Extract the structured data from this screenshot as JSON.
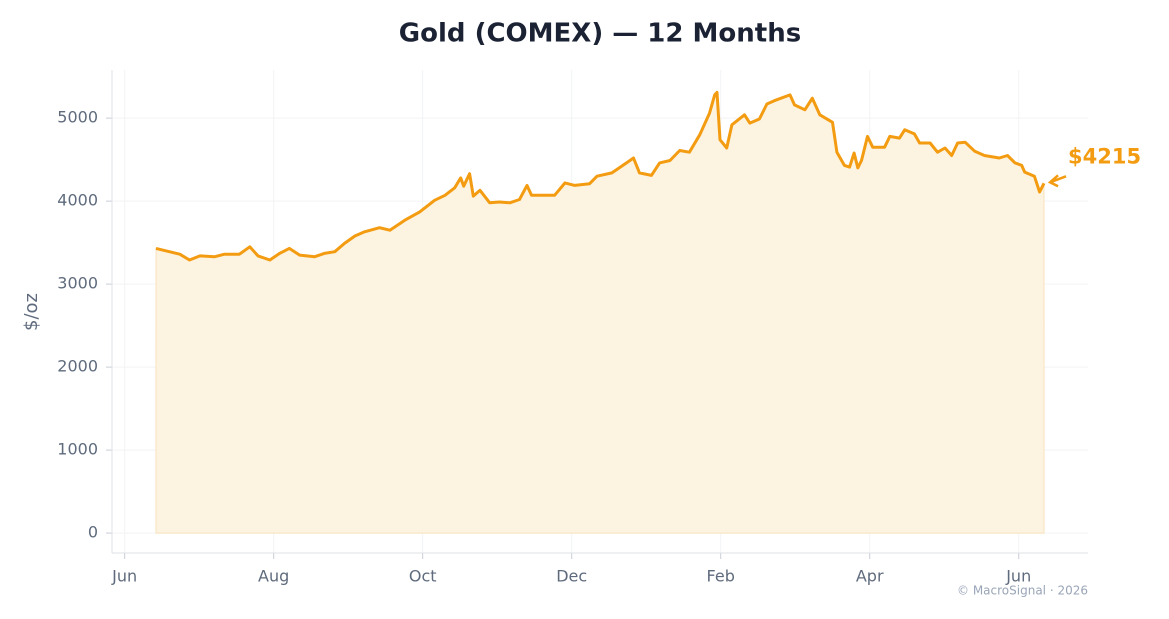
{
  "chart_data": {
    "type": "line",
    "title": "Gold (COMEX) — 12 Months",
    "y_label": "$/oz",
    "source": "© MacroSignal · 2026",
    "annotation": "$4215",
    "color": "#f39c12",
    "fill_color": "#fdf3e1",
    "grid": true,
    "xlim": [
      -0.17,
      12.93
    ],
    "ylim": [
      -240,
      5580
    ],
    "xticks": [
      {
        "value": 0,
        "label": "Jun"
      },
      {
        "value": 2,
        "label": "Aug"
      },
      {
        "value": 4,
        "label": "Oct"
      },
      {
        "value": 6,
        "label": "Dec"
      },
      {
        "value": 8,
        "label": "Feb"
      },
      {
        "value": 10,
        "label": "Apr"
      },
      {
        "value": 12,
        "label": "Jun"
      }
    ],
    "yticks": [
      0,
      1000,
      2000,
      3000,
      4000,
      5000
    ],
    "x": [
      0.42,
      0.6,
      0.74,
      0.87,
      1.01,
      1.21,
      1.34,
      1.54,
      1.68,
      1.79,
      1.95,
      2.08,
      2.21,
      2.35,
      2.55,
      2.68,
      2.82,
      2.95,
      3.09,
      3.22,
      3.42,
      3.56,
      3.76,
      3.96,
      4.16,
      4.3,
      4.43,
      4.51,
      4.55,
      4.63,
      4.68,
      4.77,
      4.9,
      5.03,
      5.17,
      5.3,
      5.4,
      5.46,
      5.64,
      5.77,
      5.91,
      6.04,
      6.24,
      6.34,
      6.54,
      6.75,
      6.83,
      6.91,
      7.07,
      7.18,
      7.32,
      7.45,
      7.58,
      7.72,
      7.85,
      7.92,
      7.95,
      7.99,
      8.08,
      8.15,
      8.32,
      8.39,
      8.52,
      8.62,
      8.72,
      8.93,
      8.99,
      9.13,
      9.23,
      9.33,
      9.5,
      9.56,
      9.66,
      9.73,
      9.79,
      9.84,
      9.89,
      9.97,
      10.04,
      10.2,
      10.27,
      10.4,
      10.47,
      10.6,
      10.67,
      10.81,
      10.91,
      11.01,
      11.1,
      11.18,
      11.28,
      11.41,
      11.54,
      11.74,
      11.85,
      11.95,
      12.04,
      12.08,
      12.21,
      12.28,
      12.34
    ],
    "values": [
      3430,
      3390,
      3360,
      3290,
      3340,
      3330,
      3360,
      3360,
      3450,
      3340,
      3290,
      3370,
      3430,
      3350,
      3330,
      3370,
      3390,
      3490,
      3580,
      3630,
      3680,
      3650,
      3770,
      3870,
      4010,
      4070,
      4160,
      4280,
      4180,
      4330,
      4060,
      4130,
      3980,
      3990,
      3980,
      4020,
      4190,
      4070,
      4070,
      4070,
      4220,
      4190,
      4210,
      4300,
      4340,
      4470,
      4520,
      4340,
      4310,
      4460,
      4490,
      4610,
      4590,
      4800,
      5060,
      5280,
      5310,
      4740,
      4640,
      4920,
      5040,
      4940,
      4990,
      5170,
      5210,
      5280,
      5160,
      5100,
      5240,
      5040,
      4950,
      4590,
      4430,
      4410,
      4580,
      4400,
      4490,
      4780,
      4650,
      4650,
      4780,
      4760,
      4860,
      4810,
      4700,
      4700,
      4590,
      4640,
      4550,
      4700,
      4710,
      4600,
      4550,
      4520,
      4550,
      4460,
      4430,
      4350,
      4300,
      4110,
      4215
    ]
  }
}
